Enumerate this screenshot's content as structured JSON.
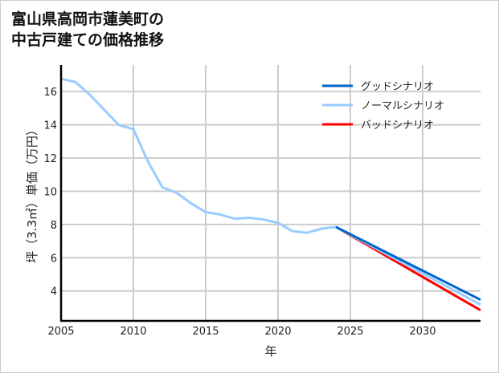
{
  "chart_data": {
    "type": "line",
    "title_lines": [
      "富山県高岡市蓮美町の",
      "中古戸建ての価格推移"
    ],
    "xlabel": "年",
    "ylabel": "坪（3.3㎡）単価（万円）",
    "xlim": [
      2005,
      2034
    ],
    "ylim": [
      2.2,
      17.6
    ],
    "xticks": [
      2005,
      2010,
      2015,
      2020,
      2025,
      2030
    ],
    "yticks": [
      4,
      6,
      8,
      10,
      12,
      14,
      16
    ],
    "grid": true,
    "legend_position": "top-right",
    "series": [
      {
        "name": "グッドシナリオ",
        "color": "#0066cc",
        "x": [
          2024,
          2034
        ],
        "y": [
          7.85,
          3.47
        ]
      },
      {
        "name": "ノーマルシナリオ",
        "color": "#99ccff",
        "x": [
          2005,
          2006,
          2007,
          2009,
          2010,
          2011,
          2012,
          2013,
          2014,
          2015,
          2016,
          2017,
          2018,
          2019,
          2020,
          2021,
          2022,
          2023,
          2024,
          2034
        ],
        "y": [
          16.77,
          16.57,
          15.8,
          13.98,
          13.74,
          11.8,
          10.24,
          9.9,
          9.27,
          8.74,
          8.6,
          8.35,
          8.4,
          8.3,
          8.1,
          7.6,
          7.5,
          7.75,
          7.85,
          3.18
        ]
      },
      {
        "name": "バッドシナリオ",
        "color": "#ff0000",
        "x": [
          2024,
          2034
        ],
        "y": [
          7.85,
          2.84
        ]
      }
    ]
  }
}
